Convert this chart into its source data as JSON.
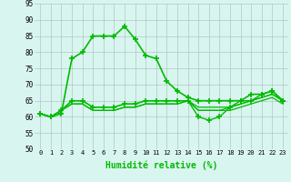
{
  "xlabel": "Humidité relative (%)",
  "xlim": [
    -0.5,
    23.5
  ],
  "ylim": [
    50,
    95
  ],
  "yticks": [
    50,
    55,
    60,
    65,
    70,
    75,
    80,
    85,
    90,
    95
  ],
  "xticks": [
    0,
    1,
    2,
    3,
    4,
    5,
    6,
    7,
    8,
    9,
    10,
    11,
    12,
    13,
    14,
    15,
    16,
    17,
    18,
    19,
    20,
    21,
    22,
    23
  ],
  "bg_color": "#d9f5f0",
  "grid_color": "#b0c8c0",
  "line_color": "#00bb00",
  "lines": [
    {
      "y": [
        61,
        60,
        61,
        78,
        80,
        85,
        85,
        85,
        88,
        84,
        79,
        78,
        71,
        68,
        66,
        65,
        65,
        65,
        65,
        65,
        67,
        67,
        68,
        65
      ],
      "marker": true,
      "lw": 1.2
    },
    {
      "y": [
        61,
        60,
        62,
        65,
        65,
        63,
        63,
        63,
        64,
        64,
        65,
        65,
        65,
        65,
        65,
        60,
        59,
        60,
        63,
        65,
        65,
        67,
        68,
        65
      ],
      "marker": true,
      "lw": 1.0
    },
    {
      "y": [
        61,
        60,
        62,
        64,
        64,
        62,
        62,
        62,
        63,
        63,
        64,
        64,
        64,
        64,
        65,
        62,
        62,
        62,
        63,
        64,
        65,
        66,
        67,
        65
      ],
      "marker": false,
      "lw": 0.9
    },
    {
      "y": [
        61,
        60,
        62,
        64,
        64,
        62,
        62,
        62,
        63,
        63,
        64,
        64,
        64,
        64,
        65,
        62,
        62,
        62,
        62,
        63,
        64,
        65,
        66,
        64
      ],
      "marker": false,
      "lw": 0.9
    },
    {
      "y": [
        61,
        60,
        62,
        65,
        65,
        63,
        63,
        63,
        64,
        64,
        65,
        65,
        65,
        65,
        65,
        63,
        63,
        63,
        63,
        64,
        65,
        66,
        67,
        65
      ],
      "marker": false,
      "lw": 0.9
    }
  ]
}
